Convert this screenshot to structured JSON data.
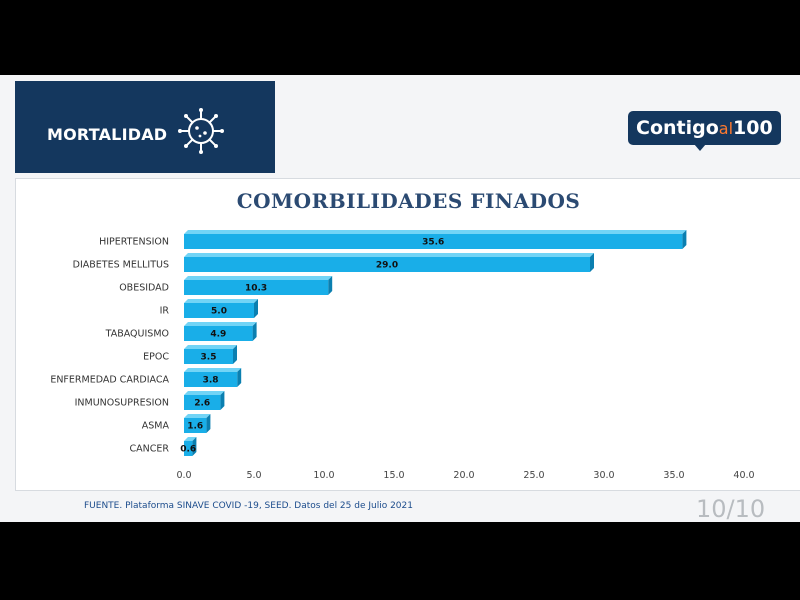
{
  "header": {
    "banner_label": "MORTALIDAD",
    "logo_part1": "Contigo",
    "logo_part2": "al",
    "logo_part3": "100"
  },
  "chart_data": {
    "type": "bar",
    "orientation": "horizontal",
    "title": "COMORBILIDADES FINADOS",
    "categories": [
      "HIPERTENSION",
      "DIABETES MELLITUS",
      "OBESIDAD",
      "IR",
      "TABAQUISMO",
      "EPOC",
      "ENFERMEDAD CARDIACA",
      "INMUNOSUPRESION",
      "ASMA",
      "CANCER"
    ],
    "values": [
      35.6,
      29.0,
      10.3,
      5.0,
      4.9,
      3.5,
      3.8,
      2.6,
      1.6,
      0.6
    ],
    "xlim": [
      0,
      40
    ],
    "xticks": [
      "0.0",
      "5.0",
      "10.0",
      "15.0",
      "20.0",
      "25.0",
      "30.0",
      "35.0",
      "40.0"
    ],
    "grid": false,
    "bar_color": "#19aee8"
  },
  "footer": {
    "source": "FUENTE. Plataforma SINAVE COVID -19, SEED. Datos del 25 de Julio 2021",
    "page": "10/10"
  }
}
